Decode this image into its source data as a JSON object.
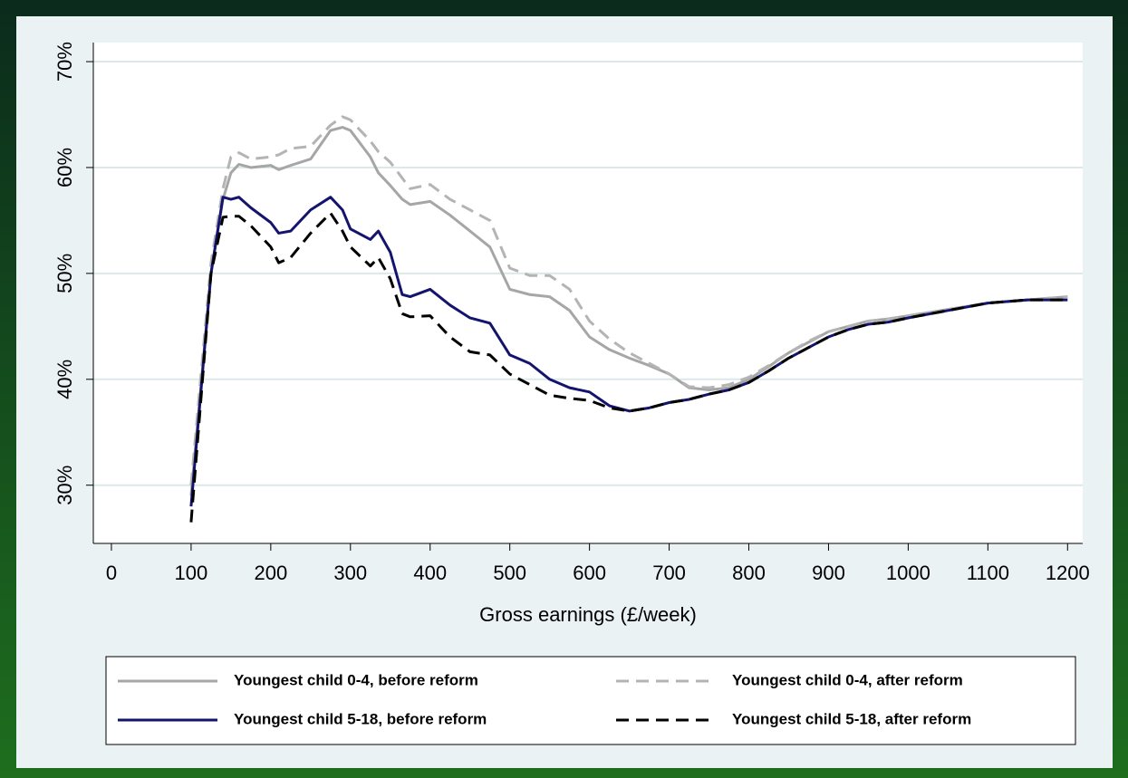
{
  "chart_data": {
    "type": "line",
    "x_label": "Gross earnings (£/week)",
    "xlim": [
      -22.7,
      1219
    ],
    "ylim": [
      24.5,
      71.8
    ],
    "xticks": [
      0,
      100,
      200,
      300,
      400,
      500,
      600,
      700,
      800,
      900,
      1000,
      1100,
      1200
    ],
    "yticks": [
      {
        "value": 30,
        "label": "30%"
      },
      {
        "value": 40,
        "label": "40%"
      },
      {
        "value": 50,
        "label": "50%"
      },
      {
        "value": 60,
        "label": "60%"
      },
      {
        "value": 70,
        "label": "70%"
      }
    ],
    "grid": true,
    "legend": "bottom",
    "x": [
      100,
      125,
      140,
      150,
      160,
      175,
      200,
      210,
      225,
      250,
      275,
      290,
      300,
      325,
      335,
      350,
      365,
      375,
      400,
      425,
      450,
      475,
      500,
      525,
      550,
      575,
      600,
      625,
      650,
      675,
      700,
      725,
      750,
      775,
      800,
      825,
      850,
      875,
      900,
      925,
      950,
      975,
      1000,
      1050,
      1100,
      1150,
      1200
    ],
    "series": [
      {
        "name": "Youngest child 0-4, before reform",
        "color": "#a6a6a6",
        "style": "solid",
        "values": [
          29,
          50,
          57,
          59.5,
          60.3,
          60,
          60.2,
          59.8,
          60.2,
          60.8,
          63.5,
          63.8,
          63.5,
          61,
          59.5,
          58.3,
          57,
          56.5,
          56.8,
          55.5,
          54,
          52.5,
          48.5,
          48,
          47.8,
          46.5,
          44,
          42.8,
          42,
          41.3,
          40.5,
          39.2,
          39,
          39.2,
          40,
          41.2,
          42.5,
          43.5,
          44.5,
          45,
          45.5,
          45.7,
          46,
          46.6,
          47.2,
          47.5,
          47.8
        ]
      },
      {
        "name": "Youngest child 0-4, after reform",
        "color": "#b4b4b4",
        "style": "dashed",
        "values": [
          30,
          51,
          58,
          61,
          61.4,
          60.8,
          61,
          61.2,
          61.8,
          62,
          64,
          64.8,
          64.5,
          62.5,
          61.5,
          60.5,
          59,
          58,
          58.4,
          57,
          56,
          55,
          50.5,
          49.8,
          49.8,
          48.5,
          45.5,
          43.8,
          42.5,
          41.5,
          40.5,
          39.3,
          39.2,
          39.5,
          40.2,
          41.3,
          42.5,
          43.6,
          44.5,
          45,
          45.5,
          45.7,
          46,
          46.6,
          47.2,
          47.5,
          47.8
        ]
      },
      {
        "name": "Youngest child 5-18, before reform",
        "color": "#14146e",
        "style": "solid",
        "values": [
          28,
          50,
          57.2,
          57,
          57.2,
          56.2,
          54.8,
          53.8,
          54,
          56,
          57.2,
          56,
          54.2,
          53.2,
          54,
          52,
          48,
          47.8,
          48.5,
          47,
          45.8,
          45.3,
          42.3,
          41.5,
          40,
          39.2,
          38.8,
          37.5,
          37,
          37.3,
          37.8,
          38.1,
          38.6,
          39,
          39.7,
          40.8,
          42,
          43,
          44,
          44.7,
          45.2,
          45.4,
          45.8,
          46.5,
          47.2,
          47.5,
          47.5
        ]
      },
      {
        "name": "Youngest child 5-18, after reform",
        "color": "#000000",
        "style": "dashed",
        "values": [
          26.5,
          50,
          55.3,
          55.4,
          55.4,
          54.5,
          52.5,
          51,
          51.5,
          53.8,
          55.7,
          54,
          52.5,
          50.7,
          51.5,
          49.5,
          46.2,
          45.9,
          46,
          44,
          42.6,
          42.3,
          40.5,
          39.5,
          38.5,
          38.2,
          38,
          37.3,
          37,
          37.3,
          37.8,
          38.1,
          38.6,
          39,
          39.7,
          40.8,
          42,
          43,
          44,
          44.7,
          45.2,
          45.4,
          45.8,
          46.5,
          47.2,
          47.5,
          47.5
        ]
      }
    ]
  }
}
